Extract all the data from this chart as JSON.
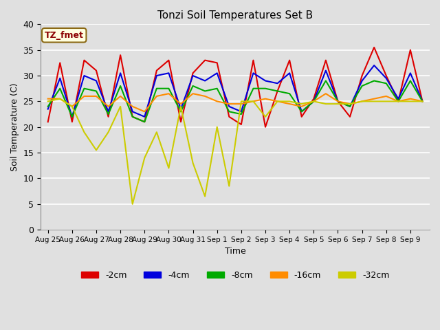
{
  "title": "Tonzi Soil Temperatures Set B",
  "xlabel": "Time",
  "ylabel": "Soil Temperature (C)",
  "annotation": "TZ_fmet",
  "ylim": [
    0,
    40
  ],
  "yticks": [
    0,
    5,
    10,
    15,
    20,
    25,
    30,
    35,
    40
  ],
  "xtick_labels": [
    "Aug 25",
    "Aug 26",
    "Aug 27",
    "Aug 28",
    "Aug 29",
    "Aug 30",
    "Aug 31",
    "Sep 1",
    "Sep 2",
    "Sep 3",
    "Sep 4",
    "Sep 5",
    "Sep 6",
    "Sep 7",
    "Sep 8",
    "Sep 9"
  ],
  "series": {
    "-2cm": {
      "color": "#dd0000",
      "x": [
        0,
        0.5,
        1,
        1.5,
        2,
        2.5,
        3,
        3.5,
        4,
        4.5,
        5,
        5.5,
        6,
        6.5,
        7,
        7.5,
        8,
        8.5,
        9,
        9.5,
        10,
        10.5,
        11,
        11.5,
        12,
        12.5,
        13,
        13.5,
        14,
        14.5,
        15,
        15.5
      ],
      "y": [
        21,
        32.5,
        21,
        33,
        31,
        22,
        34,
        22,
        21,
        31,
        33,
        21,
        30.5,
        33,
        32.5,
        22,
        20.5,
        33,
        20,
        27,
        33,
        22,
        25.5,
        33,
        25,
        22,
        30,
        35.5,
        30,
        25,
        35,
        25
      ]
    },
    "-4cm": {
      "color": "#0000dd",
      "x": [
        0,
        0.5,
        1,
        1.5,
        2,
        2.5,
        3,
        3.5,
        4,
        4.5,
        5,
        5.5,
        6,
        6.5,
        7,
        7.5,
        8,
        8.5,
        9,
        9.5,
        10,
        10.5,
        11,
        11.5,
        12,
        12.5,
        13,
        13.5,
        14,
        14.5,
        15,
        15.5
      ],
      "y": [
        23.5,
        29.5,
        22,
        30,
        29,
        23,
        30.5,
        23,
        22,
        30,
        30.5,
        23.5,
        30,
        29,
        30.5,
        24,
        23,
        30.5,
        29,
        28.5,
        30.5,
        23,
        25,
        31,
        25,
        24,
        29,
        32,
        29.5,
        25.5,
        30.5,
        25
      ]
    },
    "-8cm": {
      "color": "#00aa00",
      "x": [
        0,
        0.5,
        1,
        1.5,
        2,
        2.5,
        3,
        3.5,
        4,
        4.5,
        5,
        5.5,
        6,
        6.5,
        7,
        7.5,
        8,
        8.5,
        9,
        9.5,
        10,
        10.5,
        11,
        11.5,
        12,
        12.5,
        13,
        13.5,
        14,
        14.5,
        15,
        15.5
      ],
      "y": [
        24,
        27.5,
        22,
        27.5,
        27,
        22.5,
        28,
        22,
        21,
        27.5,
        27.5,
        23,
        28,
        27,
        27.5,
        23,
        22.5,
        27.5,
        27.5,
        27,
        26.5,
        23,
        25,
        29,
        25,
        24,
        28,
        29,
        28.5,
        25,
        29,
        25
      ]
    },
    "-16cm": {
      "color": "#ff8c00",
      "x": [
        0,
        0.5,
        1,
        1.5,
        2,
        2.5,
        3,
        3.5,
        4,
        4.5,
        5,
        5.5,
        6,
        6.5,
        7,
        7.5,
        8,
        8.5,
        9,
        9.5,
        10,
        10.5,
        11,
        11.5,
        12,
        12.5,
        13,
        13.5,
        14,
        14.5,
        15,
        15.5
      ],
      "y": [
        25.5,
        25.5,
        24,
        26,
        26,
        24,
        26,
        24,
        23,
        26,
        26.5,
        24.5,
        26.5,
        26,
        25,
        24.5,
        24.5,
        25,
        25.5,
        25,
        24.5,
        24,
        25,
        26.5,
        25,
        24.5,
        25,
        25.5,
        26,
        25,
        25.5,
        25
      ]
    },
    "-32cm": {
      "color": "#cccc00",
      "x": [
        0,
        0.5,
        1,
        1.5,
        2,
        2.5,
        3,
        3.5,
        4,
        4.5,
        5,
        5.5,
        6,
        6.5,
        7,
        7.5,
        8,
        8.5,
        9,
        9.5,
        10,
        10.5,
        11,
        11.5,
        12,
        12.5,
        13,
        13.5,
        14,
        14.5,
        15,
        15.5
      ],
      "y": [
        25,
        25.5,
        24,
        19,
        15.5,
        19,
        24,
        5,
        14,
        19,
        12,
        24,
        13,
        6.5,
        20,
        8.5,
        25,
        25,
        22,
        25,
        25,
        24.5,
        25,
        24.5,
        24.5,
        24.5,
        25,
        25,
        25,
        25,
        25,
        25
      ]
    }
  },
  "background_color": "#e0e0e0",
  "figure_color": "#e0e0e0",
  "grid_color": "#ffffff",
  "legend_entries": [
    "-2cm",
    "-4cm",
    "-8cm",
    "-16cm",
    "-32cm"
  ],
  "legend_colors": [
    "#dd0000",
    "#0000dd",
    "#00aa00",
    "#ff8c00",
    "#cccc00"
  ]
}
